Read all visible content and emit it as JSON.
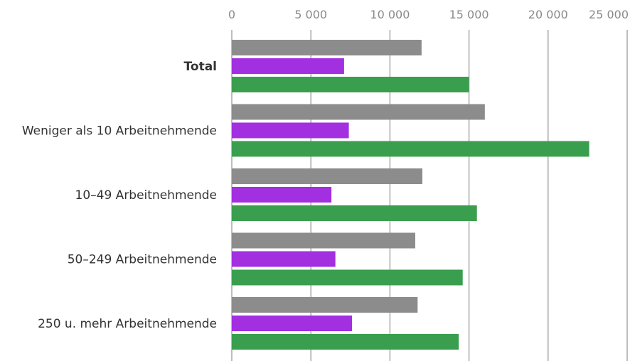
{
  "chart_data": {
    "type": "bar",
    "orientation": "horizontal",
    "title": "",
    "xlabel": "",
    "ylabel": "",
    "xlim": [
      0,
      25000
    ],
    "x_ticks": [
      0,
      5000,
      10000,
      15000,
      20000,
      25000
    ],
    "x_tick_labels": [
      "0",
      "5 000",
      "10 000",
      "15 000",
      "20 000",
      "25 000"
    ],
    "grid": "vertical",
    "legend": "none",
    "categories": [
      "Total",
      "Weniger als 10 Arbeitnehmende",
      "10–49 Arbeitnehmende",
      "50–249 Arbeitnehmende",
      "250 u. mehr Arbeitnehmende"
    ],
    "bold_categories": [
      "Total"
    ],
    "series": [
      {
        "color": "#8c8c8c",
        "values": [
          12000,
          16000,
          12050,
          11600,
          11750
        ]
      },
      {
        "color": "#a22fe0",
        "values": [
          7100,
          7400,
          6300,
          6550,
          7600
        ]
      },
      {
        "color": "#3a9e4f",
        "values": [
          15000,
          22600,
          15500,
          14600,
          14350
        ]
      }
    ]
  }
}
